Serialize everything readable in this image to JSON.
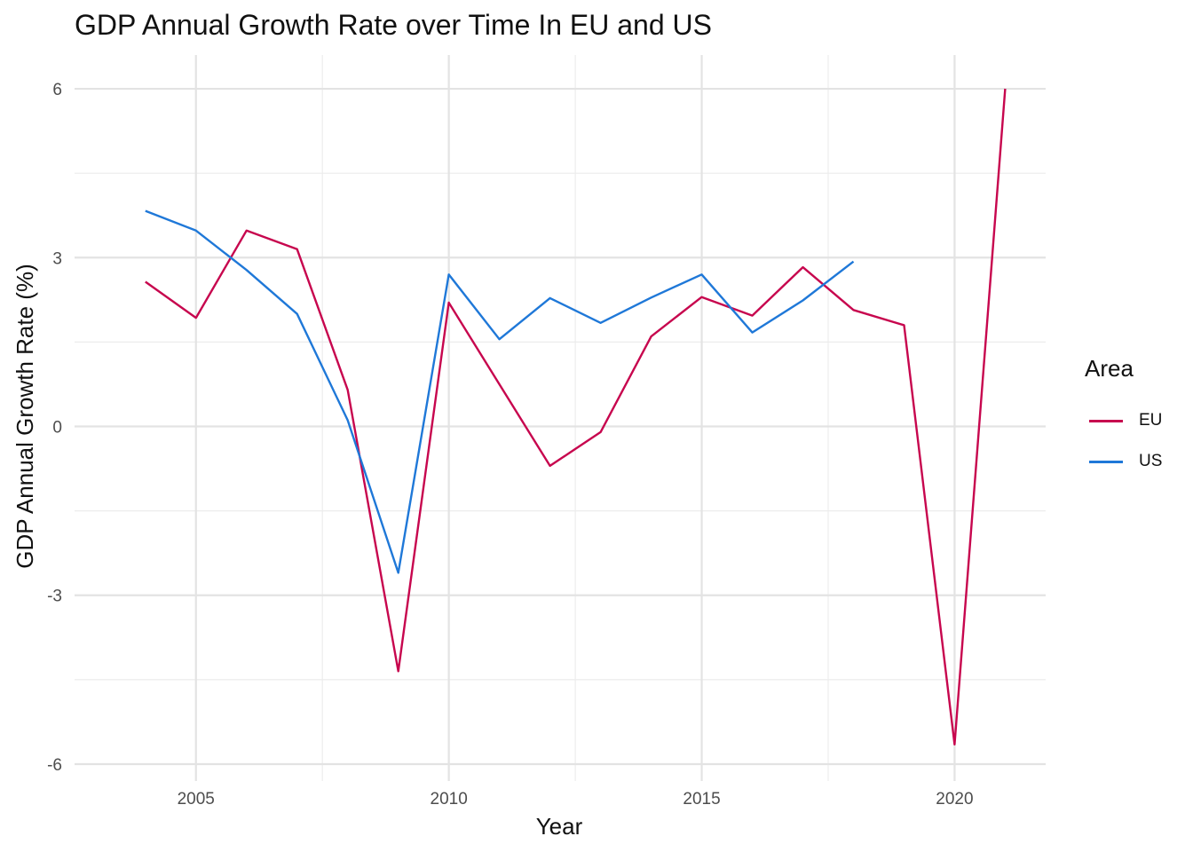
{
  "chart_data": {
    "type": "line",
    "title": "GDP Annual Growth Rate over Time In EU and US",
    "xlabel": "Year",
    "ylabel": "GDP Annual Growth Rate (%)",
    "xlim": [
      2002.6,
      2021.8
    ],
    "ylim": [
      -6.3,
      6.6
    ],
    "x_ticks": [
      2005,
      2010,
      2015,
      2020
    ],
    "x_minor_ticks": [
      2007.5,
      2012.5,
      2017.5
    ],
    "y_ticks": [
      6,
      3,
      0,
      -3,
      -6
    ],
    "y_minor_ticks": [
      4.5,
      1.5,
      -1.5,
      -4.5
    ],
    "grid": true,
    "legend_title": "Area",
    "legend_position": "right",
    "series": [
      {
        "name": "EU",
        "color": "#C7064E",
        "x": [
          2004,
          2005,
          2006,
          2007,
          2008,
          2009,
          2010,
          2011,
          2012,
          2013,
          2014,
          2015,
          2016,
          2017,
          2018,
          2019,
          2020,
          2021
        ],
        "values": [
          2.57,
          1.93,
          3.48,
          3.15,
          0.65,
          -4.35,
          2.2,
          0.75,
          -0.7,
          -0.1,
          1.6,
          2.3,
          1.97,
          2.83,
          2.07,
          1.8,
          -5.65,
          6.0
        ]
      },
      {
        "name": "US",
        "color": "#1F78D8",
        "x": [
          2004,
          2005,
          2006,
          2007,
          2008,
          2009,
          2010,
          2011,
          2012,
          2013,
          2014,
          2015,
          2016,
          2017,
          2018
        ],
        "values": [
          3.83,
          3.48,
          2.78,
          2.0,
          0.11,
          -2.6,
          2.7,
          1.55,
          2.28,
          1.84,
          2.29,
          2.7,
          1.67,
          2.24,
          2.93
        ]
      }
    ]
  }
}
